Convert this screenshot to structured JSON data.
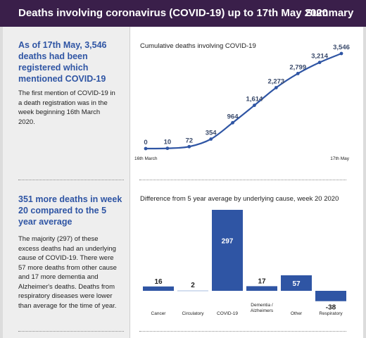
{
  "header": {
    "title": "Deaths involving coronavirus (COVID-19) up to 17th May 2020",
    "summary_label": "Summary",
    "colors": {
      "background": "#3a1f4a",
      "text": "#ffffff"
    }
  },
  "section1": {
    "lead": "As of 17th May, 3,546 deaths had been registered which mentioned COVID-19",
    "body": "The first mention of COVID-19 in a death registration was in the week beginning 16th March 2020."
  },
  "section2": {
    "lead": "351 more deaths in week 20 compared to the 5 year average",
    "body": "The majority (297) of these excess deaths had an underlying cause of COVID-19. There were 57 more deaths from other cause and 17 more dementia and Alzheimer's deaths.  Deaths from respiratory diseases were lower than average for the time of year."
  },
  "colors": {
    "accent": "#2f55a4",
    "sidebar": "#eeeeee",
    "light_bar": "#c5d3ea"
  },
  "chart_data": [
    {
      "type": "line",
      "title": "Cumulative deaths involving COVID-19",
      "x_start_label": "16th March",
      "x_end_label": "17th May",
      "values": [
        0,
        10,
        72,
        354,
        964,
        1614,
        2273,
        2799,
        3214,
        3546
      ],
      "value_labels": [
        "0",
        "10",
        "72",
        "354",
        "964",
        "1,614",
        "2,273",
        "2,799",
        "3,214",
        "3,546"
      ],
      "ylim": [
        0,
        3546
      ],
      "grid": false
    },
    {
      "type": "bar",
      "title": "Difference from 5 year average by underlying cause, week 20 2020",
      "categories": [
        "Cancer",
        "Circulatory",
        "COVID-19",
        "Dementia /\nAlzheimers",
        "Other",
        "Respiratory"
      ],
      "values": [
        16,
        2,
        297,
        17,
        57,
        -38
      ],
      "value_labels": [
        "16",
        "2",
        "297",
        "17",
        "57",
        "-38"
      ],
      "grid": false
    }
  ]
}
